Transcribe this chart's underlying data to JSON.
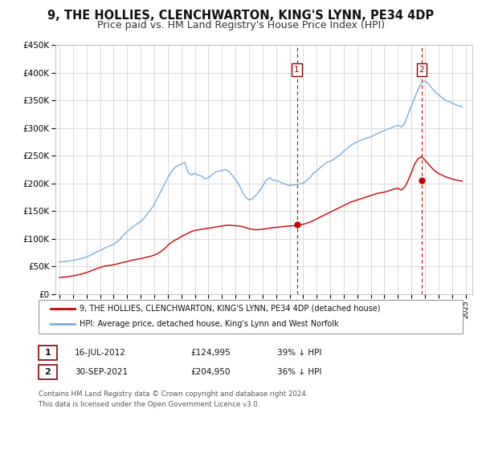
{
  "title": "9, THE HOLLIES, CLENCHWARTON, KING'S LYNN, PE34 4DP",
  "subtitle": "Price paid vs. HM Land Registry's House Price Index (HPI)",
  "ylim": [
    0,
    450000
  ],
  "yticks": [
    0,
    50000,
    100000,
    150000,
    200000,
    250000,
    300000,
    350000,
    400000,
    450000
  ],
  "ytick_labels": [
    "£0",
    "£50K",
    "£100K",
    "£150K",
    "£200K",
    "£250K",
    "£300K",
    "£350K",
    "£400K",
    "£450K"
  ],
  "xlim_start": 1994.7,
  "xlim_end": 2025.5,
  "xtick_years": [
    1995,
    1996,
    1997,
    1998,
    1999,
    2000,
    2001,
    2002,
    2003,
    2004,
    2005,
    2006,
    2007,
    2008,
    2009,
    2010,
    2011,
    2012,
    2013,
    2014,
    2015,
    2016,
    2017,
    2018,
    2019,
    2020,
    2021,
    2022,
    2023,
    2024,
    2025
  ],
  "red_line_color": "#cc0000",
  "blue_line_color": "#7aaddc",
  "marker1_x": 2012.54,
  "marker1_y": 124995,
  "marker2_x": 2021.75,
  "marker2_y": 204950,
  "vline1_x": 2012.54,
  "vline2_x": 2021.75,
  "legend_red_label": "9, THE HOLLIES, CLENCHWARTON, KING'S LYNN, PE34 4DP (detached house)",
  "legend_blue_label": "HPI: Average price, detached house, King's Lynn and West Norfolk",
  "table_row1": [
    "1",
    "16-JUL-2012",
    "£124,995",
    "39% ↓ HPI"
  ],
  "table_row2": [
    "2",
    "30-SEP-2021",
    "£204,950",
    "36% ↓ HPI"
  ],
  "footer1": "Contains HM Land Registry data © Crown copyright and database right 2024.",
  "footer2": "This data is licensed under the Open Government Licence v3.0.",
  "bg_color": "#ffffff",
  "plot_bg_color": "#ffffff",
  "grid_color": "#cccccc",
  "title_fontsize": 10.5,
  "subtitle_fontsize": 9,
  "hpi_data_x": [
    1995.0,
    1995.25,
    1995.5,
    1995.75,
    1996.0,
    1996.25,
    1996.5,
    1996.75,
    1997.0,
    1997.25,
    1997.5,
    1997.75,
    1998.0,
    1998.25,
    1998.5,
    1998.75,
    1999.0,
    1999.25,
    1999.5,
    1999.75,
    2000.0,
    2000.25,
    2000.5,
    2000.75,
    2001.0,
    2001.25,
    2001.5,
    2001.75,
    2002.0,
    2002.25,
    2002.5,
    2002.75,
    2003.0,
    2003.25,
    2003.5,
    2003.75,
    2004.0,
    2004.25,
    2004.5,
    2004.75,
    2005.0,
    2005.25,
    2005.5,
    2005.75,
    2006.0,
    2006.25,
    2006.5,
    2006.75,
    2007.0,
    2007.25,
    2007.5,
    2007.75,
    2008.0,
    2008.25,
    2008.5,
    2008.75,
    2009.0,
    2009.25,
    2009.5,
    2009.75,
    2010.0,
    2010.25,
    2010.5,
    2010.75,
    2011.0,
    2011.25,
    2011.5,
    2011.75,
    2012.0,
    2012.25,
    2012.5,
    2012.75,
    2013.0,
    2013.25,
    2013.5,
    2013.75,
    2014.0,
    2014.25,
    2014.5,
    2014.75,
    2015.0,
    2015.25,
    2015.5,
    2015.75,
    2016.0,
    2016.25,
    2016.5,
    2016.75,
    2017.0,
    2017.25,
    2017.5,
    2017.75,
    2018.0,
    2018.25,
    2018.5,
    2018.75,
    2019.0,
    2019.25,
    2019.5,
    2019.75,
    2020.0,
    2020.25,
    2020.5,
    2020.75,
    2021.0,
    2021.25,
    2021.5,
    2021.75,
    2022.0,
    2022.25,
    2022.5,
    2022.75,
    2023.0,
    2023.25,
    2023.5,
    2023.75,
    2024.0,
    2024.25,
    2024.5,
    2024.75
  ],
  "hpi_data_y": [
    58000,
    58500,
    59000,
    60000,
    61000,
    62000,
    63500,
    65000,
    67000,
    70000,
    73000,
    76000,
    79000,
    82000,
    85000,
    87000,
    90000,
    94000,
    100000,
    107000,
    113000,
    118000,
    123000,
    127000,
    131000,
    137000,
    145000,
    153000,
    162000,
    174000,
    186000,
    198000,
    210000,
    220000,
    228000,
    232000,
    235000,
    238000,
    220000,
    215000,
    218000,
    215000,
    213000,
    208000,
    210000,
    215000,
    220000,
    222000,
    223000,
    225000,
    222000,
    215000,
    207000,
    198000,
    185000,
    175000,
    170000,
    172000,
    178000,
    185000,
    195000,
    205000,
    210000,
    206000,
    205000,
    203000,
    200000,
    198000,
    196000,
    197000,
    198000,
    199000,
    200000,
    205000,
    210000,
    218000,
    222000,
    228000,
    233000,
    238000,
    240000,
    243000,
    248000,
    252000,
    258000,
    263000,
    268000,
    272000,
    275000,
    278000,
    280000,
    282000,
    284000,
    287000,
    290000,
    293000,
    295000,
    298000,
    300000,
    303000,
    305000,
    302000,
    308000,
    325000,
    340000,
    355000,
    370000,
    382000,
    385000,
    380000,
    372000,
    365000,
    360000,
    355000,
    350000,
    348000,
    345000,
    342000,
    340000,
    338000
  ],
  "red_data_x": [
    1995.0,
    1995.25,
    1995.5,
    1995.75,
    1996.0,
    1996.25,
    1996.5,
    1996.75,
    1997.0,
    1997.25,
    1997.5,
    1997.75,
    1998.0,
    1998.25,
    1998.5,
    1998.75,
    1999.0,
    1999.25,
    1999.5,
    1999.75,
    2000.0,
    2000.25,
    2000.5,
    2000.75,
    2001.0,
    2001.25,
    2001.5,
    2001.75,
    2002.0,
    2002.25,
    2002.5,
    2002.75,
    2003.0,
    2003.25,
    2003.5,
    2003.75,
    2004.0,
    2004.25,
    2004.5,
    2004.75,
    2005.0,
    2005.25,
    2005.5,
    2005.75,
    2006.0,
    2006.25,
    2006.5,
    2006.75,
    2007.0,
    2007.25,
    2007.5,
    2007.75,
    2008.0,
    2008.25,
    2008.5,
    2008.75,
    2009.0,
    2009.25,
    2009.5,
    2009.75,
    2010.0,
    2010.25,
    2010.5,
    2010.75,
    2011.0,
    2011.25,
    2011.5,
    2011.75,
    2012.0,
    2012.25,
    2012.5,
    2012.75,
    2013.0,
    2013.25,
    2013.5,
    2013.75,
    2014.0,
    2014.25,
    2014.5,
    2014.75,
    2015.0,
    2015.25,
    2015.5,
    2015.75,
    2016.0,
    2016.25,
    2016.5,
    2016.75,
    2017.0,
    2017.25,
    2017.5,
    2017.75,
    2018.0,
    2018.25,
    2018.5,
    2018.75,
    2019.0,
    2019.25,
    2019.5,
    2019.75,
    2020.0,
    2020.25,
    2020.5,
    2020.75,
    2021.0,
    2021.25,
    2021.5,
    2021.75,
    2022.0,
    2022.25,
    2022.5,
    2022.75,
    2023.0,
    2023.25,
    2023.5,
    2023.75,
    2024.0,
    2024.25,
    2024.5,
    2024.75
  ],
  "red_data_y": [
    30000,
    30500,
    31000,
    32000,
    33000,
    34000,
    35500,
    37000,
    39000,
    41000,
    43500,
    46000,
    48000,
    50000,
    51000,
    52000,
    53000,
    54500,
    56000,
    57500,
    59000,
    60500,
    62000,
    63000,
    64000,
    65500,
    67000,
    68500,
    70500,
    73000,
    77000,
    82000,
    88000,
    93000,
    97000,
    100000,
    104000,
    107000,
    110000,
    113000,
    115000,
    116000,
    117000,
    118000,
    119000,
    120000,
    121000,
    122000,
    123000,
    124000,
    124500,
    124000,
    123500,
    123000,
    122000,
    120000,
    118000,
    117000,
    116000,
    116500,
    117000,
    118000,
    119000,
    120000,
    120500,
    121000,
    122000,
    122500,
    123000,
    123500,
    124000,
    124995,
    126000,
    128000,
    130000,
    133000,
    136000,
    139000,
    142000,
    145000,
    148000,
    151000,
    154000,
    157000,
    160000,
    163000,
    166000,
    168000,
    170000,
    172000,
    174000,
    176000,
    178000,
    180000,
    182000,
    183000,
    184000,
    186000,
    188000,
    190000,
    191000,
    188000,
    193000,
    204950,
    220000,
    235000,
    245000,
    248000,
    242000,
    235000,
    228000,
    222000,
    218000,
    215000,
    212000,
    210000,
    208000,
    206000,
    205000,
    204000
  ]
}
